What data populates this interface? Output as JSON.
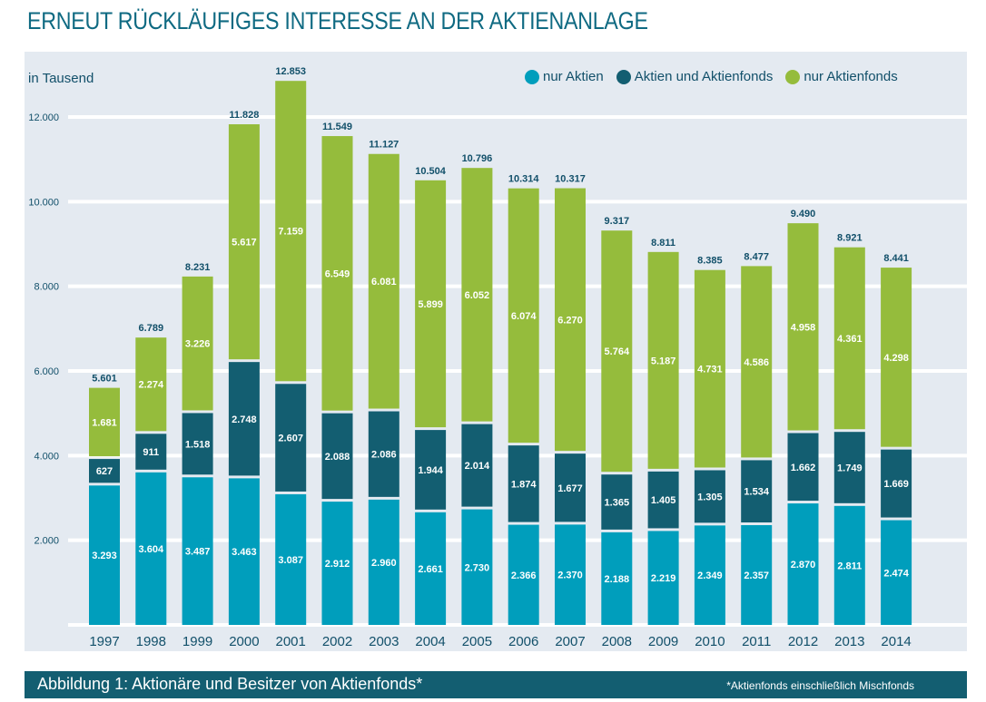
{
  "page": {
    "title": "ERNEUT RÜCKLÄUFIGES INTERESSE AN DER AKTIENANLAGE",
    "footer_caption": "Abbildung 1: Aktionäre und Besitzer von Aktienfonds*",
    "footer_note": "*Aktienfonds einschließlich Mischfonds"
  },
  "colors": {
    "nur_aktien": "#009ebc",
    "aktien_und_aktienfonds": "#135e71",
    "nur_aktienfonds": "#95bc3c",
    "title": "#0f6a82",
    "label_dark": "#12506a",
    "panel_bg": "#e4eaf1",
    "gridline": "#ffffff"
  },
  "chart_data": {
    "type": "bar",
    "stacked": true,
    "title": "ERNEUT RÜCKLÄUFIGES INTERESSE AN DER AKTIENANLAGE",
    "ylabel": "in Tausend",
    "xlabel": "",
    "ylim": [
      0,
      12000
    ],
    "yticks": [
      2000,
      4000,
      6000,
      8000,
      10000,
      12000
    ],
    "ytick_labels": [
      "2.000",
      "4.000",
      "6.000",
      "8.000",
      "10.000",
      "12.000"
    ],
    "grid": true,
    "legend_position": "top-right",
    "categories": [
      "1997",
      "1998",
      "1999",
      "2000",
      "2001",
      "2002",
      "2003",
      "2004",
      "2005",
      "2006",
      "2007",
      "2008",
      "2009",
      "2010",
      "2011",
      "2012",
      "2013",
      "2014"
    ],
    "series": [
      {
        "name": "nur Aktien",
        "color": "#009ebc",
        "values": [
          3293,
          3604,
          3487,
          3463,
          3087,
          2912,
          2960,
          2661,
          2730,
          2366,
          2370,
          2188,
          2219,
          2349,
          2357,
          2870,
          2811,
          2474
        ],
        "labels": [
          "3.293",
          "3.604",
          "3.487",
          "3.463",
          "3.087",
          "2.912",
          "2.960",
          "2.661",
          "2.730",
          "2.366",
          "2.370",
          "2.188",
          "2.219",
          "2.349",
          "2.357",
          "2.870",
          "2.811",
          "2.474"
        ]
      },
      {
        "name": "Aktien und Aktienfonds",
        "color": "#135e71",
        "values": [
          627,
          911,
          1518,
          2748,
          2607,
          2088,
          2086,
          1944,
          2014,
          1874,
          1677,
          1365,
          1405,
          1305,
          1534,
          1662,
          1749,
          1669
        ],
        "labels": [
          "627",
          "911",
          "1.518",
          "2.748",
          "2.607",
          "2.088",
          "2.086",
          "1.944",
          "2.014",
          "1.874",
          "1.677",
          "1.365",
          "1.405",
          "1.305",
          "1.534",
          "1.662",
          "1.749",
          "1.669"
        ]
      },
      {
        "name": "nur Aktienfonds",
        "color": "#95bc3c",
        "values": [
          1681,
          2274,
          3226,
          5617,
          7159,
          6549,
          6081,
          5899,
          6052,
          6074,
          6270,
          5764,
          5187,
          4731,
          4586,
          4958,
          4361,
          4298
        ],
        "labels": [
          "1.681",
          "2.274",
          "3.226",
          "5.617",
          "7.159",
          "6.549",
          "6.081",
          "5.899",
          "6.052",
          "6.074",
          "6.270",
          "5.764",
          "5.187",
          "4.731",
          "4.586",
          "4.958",
          "4.361",
          "4.298"
        ]
      }
    ],
    "totals": [
      5601,
      6789,
      8231,
      11828,
      12853,
      11549,
      11127,
      10504,
      10796,
      10314,
      10317,
      9317,
      8811,
      8385,
      8477,
      9490,
      8921,
      8441
    ],
    "total_labels": [
      "5.601",
      "6.789",
      "8.231",
      "11.828",
      "12.853",
      "11.549",
      "11.127",
      "10.504",
      "10.796",
      "10.314",
      "10.317",
      "9.317",
      "8.811",
      "8.385",
      "8.477",
      "9.490",
      "8.921",
      "8.441"
    ]
  }
}
